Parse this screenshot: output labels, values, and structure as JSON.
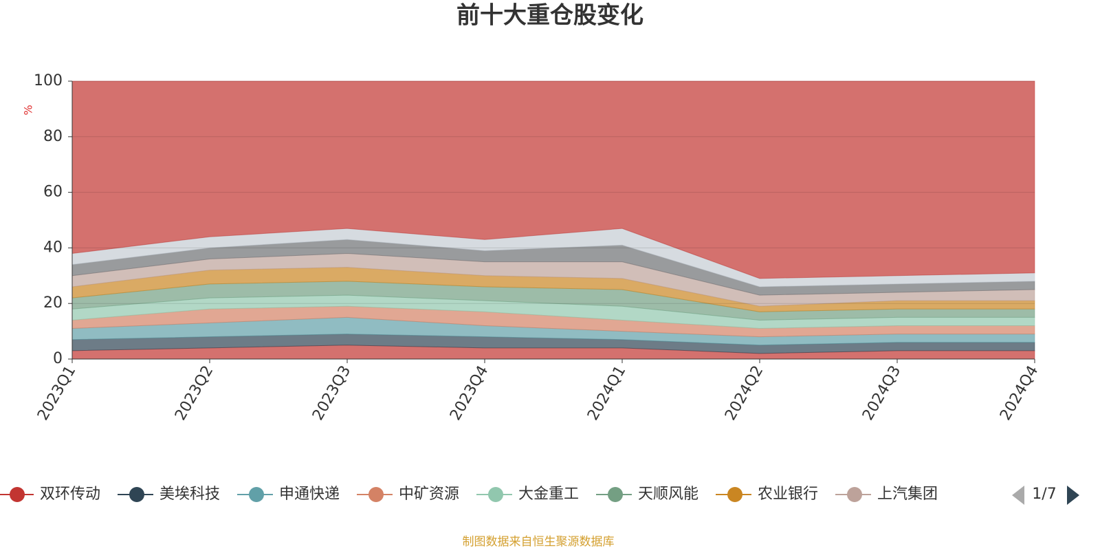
{
  "chart_data": {
    "type": "stacked_area",
    "title": "前十大重仓股变化",
    "y_label": "%",
    "categories": [
      "2023Q1",
      "2023Q2",
      "2023Q3",
      "2023Q4",
      "2024Q1",
      "2024Q2",
      "2024Q3",
      "2024Q4"
    ],
    "ylim": [
      0,
      100
    ],
    "yticks": [
      0,
      20,
      40,
      60,
      80,
      100
    ],
    "grid": true,
    "series": [
      {
        "name": "双环传动",
        "color": "#c23531",
        "values": [
          3,
          4,
          5,
          4,
          4,
          2,
          3,
          3
        ]
      },
      {
        "name": "美埃科技",
        "color": "#2f4554",
        "values": [
          4,
          4,
          4,
          4,
          3,
          3,
          3,
          3
        ]
      },
      {
        "name": "申通快递",
        "color": "#61a0a8",
        "values": [
          4,
          5,
          6,
          4,
          3,
          3,
          3,
          3
        ]
      },
      {
        "name": "中矿资源",
        "color": "#d48265",
        "values": [
          3,
          5,
          4,
          5,
          4,
          3,
          3,
          3
        ]
      },
      {
        "name": "大金重工",
        "color": "#91c7ae",
        "values": [
          4,
          4,
          4,
          4,
          5,
          3,
          3,
          3
        ]
      },
      {
        "name": "天顺风能",
        "color": "#749f83",
        "values": [
          4,
          5,
          5,
          5,
          6,
          3,
          3,
          3
        ]
      },
      {
        "name": "农业银行",
        "color": "#ca8622",
        "values": [
          4,
          5,
          5,
          4,
          4,
          2,
          3,
          3
        ]
      },
      {
        "name": "上汽集团",
        "color": "#bda29a",
        "values": [
          4,
          4,
          5,
          5,
          6,
          4,
          3,
          4
        ]
      },
      {
        "color": "#6e7074",
        "values": [
          4,
          4,
          5,
          4,
          6,
          3,
          3,
          3
        ]
      },
      {
        "color": "#c4ccd3",
        "values": [
          4,
          4,
          4,
          4,
          6,
          3,
          3,
          3
        ]
      },
      {
        "color": "#c23531",
        "values": [
          62,
          56,
          53,
          57,
          53,
          71,
          70,
          69
        ]
      }
    ],
    "legend_page": "1/7",
    "source": "制图数据来自恒生聚源数据库"
  }
}
